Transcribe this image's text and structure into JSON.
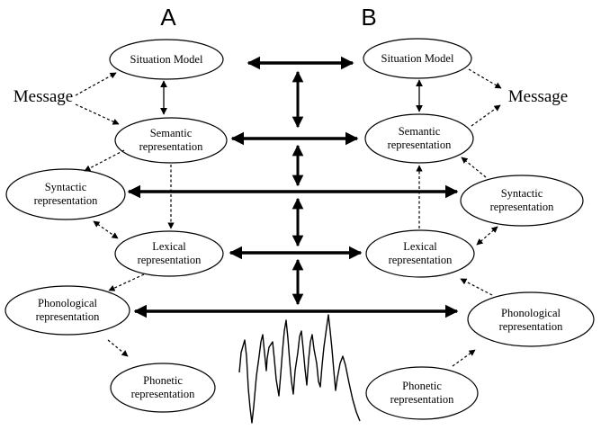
{
  "columns": {
    "left": "A",
    "right": "B"
  },
  "message": "Message",
  "nodes": {
    "a_situation": [
      "Situation Model"
    ],
    "a_semantic": [
      "Semantic",
      "representation"
    ],
    "a_syntactic": [
      "Syntactic",
      "representation"
    ],
    "a_lexical": [
      "Lexical",
      "representation"
    ],
    "a_phonological": [
      "Phonological",
      "representation"
    ],
    "a_phonetic": [
      "Phonetic",
      "representation"
    ],
    "b_situation": [
      "Situation Model"
    ],
    "b_semantic": [
      "Semantic",
      "representation"
    ],
    "b_syntactic": [
      "Syntactic",
      "representation"
    ],
    "b_lexical": [
      "Lexical",
      "representation"
    ],
    "b_phonological": [
      "Phonological",
      "representation"
    ],
    "b_phonetic": [
      "Phonetic",
      "representation"
    ]
  }
}
